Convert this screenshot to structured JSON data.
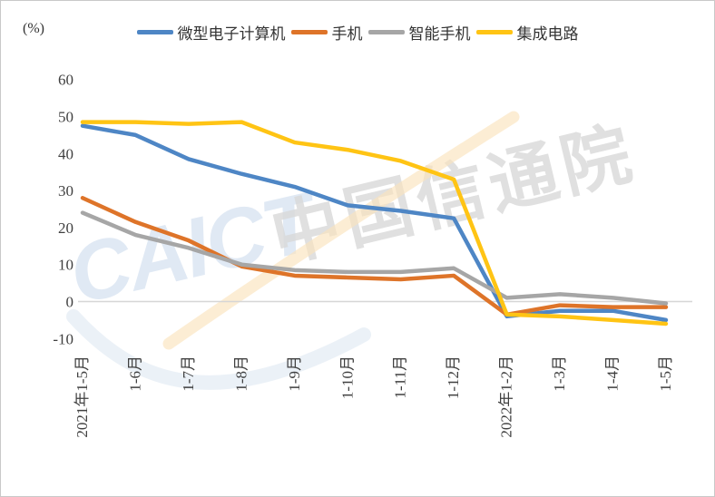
{
  "unit_label": "(%)",
  "watermark": {
    "logo_text": "CAICT",
    "brand_text": "中国信通院"
  },
  "chart_data": {
    "type": "line",
    "title": "",
    "xlabel": "",
    "ylabel": "(%)",
    "categories": [
      "2021年1-5月",
      "1-6月",
      "1-7月",
      "1-8月",
      "1-9月",
      "1-10月",
      "1-11月",
      "1-12月",
      "2022年1-2月",
      "1-3月",
      "1-4月",
      "1-5月"
    ],
    "series": [
      {
        "name": "微型电子计算机",
        "color": "#4E86C5",
        "values": [
          47.5,
          45,
          38.5,
          34.5,
          31,
          26,
          24.5,
          22.5,
          -4,
          -2.5,
          -2.5,
          -5
        ]
      },
      {
        "name": "手机",
        "color": "#DE7429",
        "values": [
          28,
          21.5,
          16.5,
          9.5,
          7,
          6.5,
          6,
          7,
          -3.5,
          -1,
          -1.5,
          -1.5
        ]
      },
      {
        "name": "智能手机",
        "color": "#A6A6A6",
        "values": [
          24,
          18,
          14.5,
          10,
          8.5,
          8,
          8,
          9,
          1,
          2,
          1,
          -0.5
        ]
      },
      {
        "name": "集成电路",
        "color": "#FFC414",
        "values": [
          48.5,
          48.5,
          48,
          48.5,
          43,
          41,
          38,
          33,
          -3.5,
          -4,
          -5,
          -6
        ]
      }
    ],
    "ylim": [
      -10,
      60
    ],
    "yticks": [
      60,
      50,
      40,
      30,
      20,
      10,
      0,
      -10
    ],
    "grid": "zero-line-only",
    "legend_position": "top"
  }
}
